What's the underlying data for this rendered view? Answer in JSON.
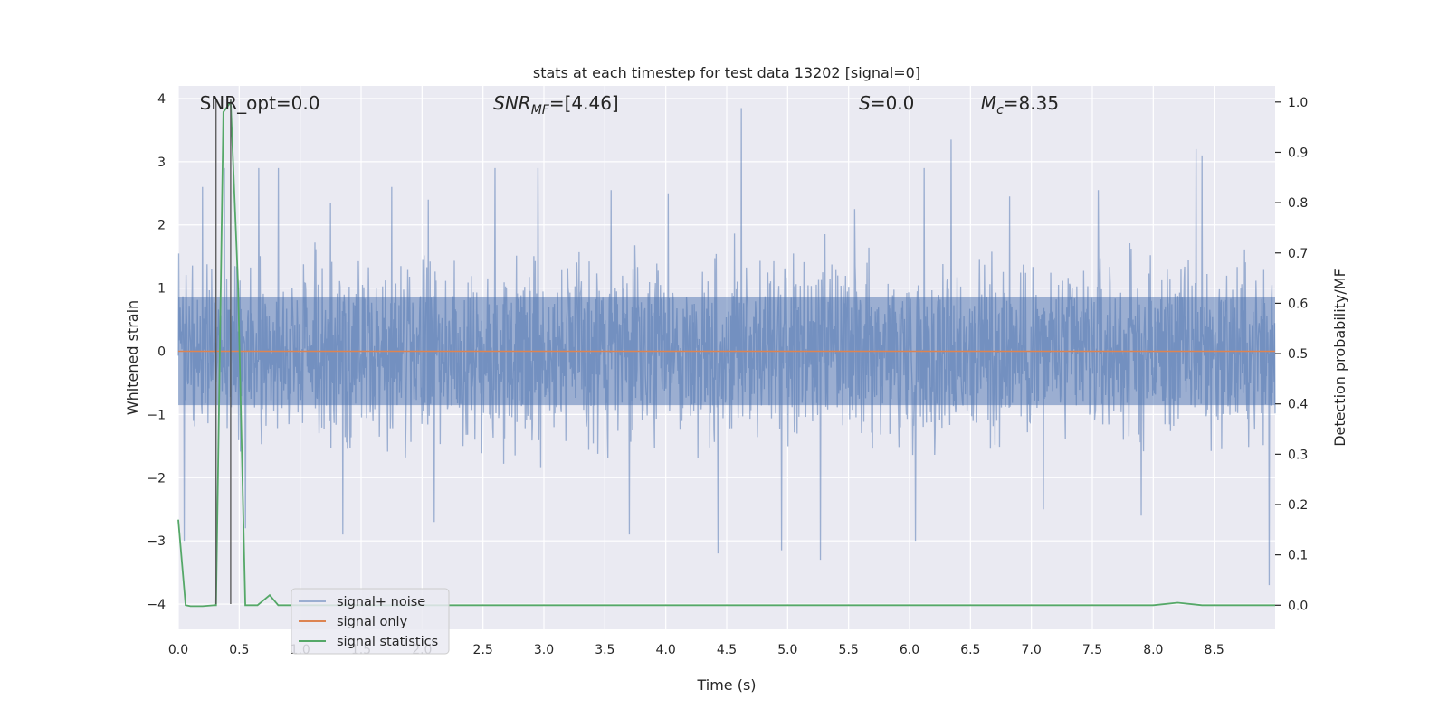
{
  "chart_data": {
    "type": "line",
    "title": "stats at each timestep for test data 13202 [signal=0]",
    "xlabel": "Time (s)",
    "ylabel_left": "Whitened strain",
    "ylabel_right": "Detection probability/MF",
    "xlim": [
      0.0,
      9.0
    ],
    "ylim_left": [
      -4.4,
      4.2
    ],
    "ylim_right": [
      -0.048,
      1.032
    ],
    "x_ticks": [
      0.0,
      0.5,
      1.0,
      1.5,
      2.0,
      2.5,
      3.0,
      3.5,
      4.0,
      4.5,
      5.0,
      5.5,
      6.0,
      6.5,
      7.0,
      7.5,
      8.0,
      8.5
    ],
    "x_tick_labels": [
      "0.0",
      "0.5",
      "1.0",
      "1.5",
      "2.0",
      "2.5",
      "3.0",
      "3.5",
      "4.0",
      "4.5",
      "5.0",
      "5.5",
      "6.0",
      "6.5",
      "7.0",
      "7.5",
      "8.0",
      "8.5"
    ],
    "y_left_ticks": [
      4,
      3,
      2,
      1,
      0,
      -1,
      -2,
      -3,
      -4
    ],
    "y_left_tick_labels": [
      "4",
      "3",
      "2",
      "1",
      "0",
      "−1",
      "−2",
      "−3",
      "−4"
    ],
    "y_right_ticks": [
      1.0,
      0.9,
      0.8,
      0.7,
      0.6,
      0.5,
      0.4,
      0.3,
      0.2,
      0.1,
      0.0
    ],
    "y_right_tick_labels": [
      "1.0",
      "0.9",
      "0.8",
      "0.7",
      "0.6",
      "0.5",
      "0.4",
      "0.3",
      "0.2",
      "0.1",
      "0.0"
    ],
    "grid": true,
    "legend_placement": "lower-left",
    "annotations": [
      {
        "text": "SNR_opt=0.0",
        "x": 0.19
      },
      {
        "text": "SNR",
        "sub": "MF",
        "suffix": "=[4.46]",
        "italic": true,
        "x": 2.6
      },
      {
        "text": "S",
        "suffix": "=0.0",
        "italic": true,
        "x": 5.6
      },
      {
        "text": "M",
        "sub": "c",
        "suffix": "=8.35",
        "italic": true,
        "x": 6.6
      }
    ],
    "vertical_lines_x": [
      0.31,
      0.43
    ],
    "series": [
      {
        "name": "signal+ noise",
        "color": "#4c72b0",
        "alpha": 0.5,
        "axis": "left",
        "envelope_typical": 1.55,
        "spikes_up": [
          {
            "x": 0.2,
            "y": 2.6
          },
          {
            "x": 0.38,
            "y": 2.9
          },
          {
            "x": 0.66,
            "y": 2.9
          },
          {
            "x": 0.82,
            "y": 2.9
          },
          {
            "x": 1.25,
            "y": 2.35
          },
          {
            "x": 1.75,
            "y": 2.6
          },
          {
            "x": 2.05,
            "y": 2.4
          },
          {
            "x": 2.6,
            "y": 2.9
          },
          {
            "x": 2.95,
            "y": 2.9
          },
          {
            "x": 3.55,
            "y": 2.55
          },
          {
            "x": 4.02,
            "y": 2.5
          },
          {
            "x": 4.62,
            "y": 3.85
          },
          {
            "x": 5.55,
            "y": 2.25
          },
          {
            "x": 6.12,
            "y": 2.9
          },
          {
            "x": 6.34,
            "y": 3.35
          },
          {
            "x": 6.82,
            "y": 2.45
          },
          {
            "x": 7.55,
            "y": 2.55
          },
          {
            "x": 8.35,
            "y": 3.2
          },
          {
            "x": 8.4,
            "y": 3.1
          }
        ],
        "spikes_down": [
          {
            "x": 0.05,
            "y": -3.0
          },
          {
            "x": 0.55,
            "y": -2.8
          },
          {
            "x": 1.35,
            "y": -2.9
          },
          {
            "x": 2.1,
            "y": -2.7
          },
          {
            "x": 3.7,
            "y": -2.9
          },
          {
            "x": 4.43,
            "y": -3.2
          },
          {
            "x": 4.95,
            "y": -3.15
          },
          {
            "x": 5.27,
            "y": -3.3
          },
          {
            "x": 6.05,
            "y": -3.0
          },
          {
            "x": 7.1,
            "y": -2.5
          },
          {
            "x": 7.9,
            "y": -2.6
          },
          {
            "x": 8.95,
            "y": -3.7
          }
        ]
      },
      {
        "name": "signal only",
        "color": "#dd8452",
        "axis": "left",
        "x": [
          0.0,
          9.0
        ],
        "y": [
          0.0,
          0.0
        ]
      },
      {
        "name": "signal statistics",
        "color": "#55a868",
        "axis": "right",
        "x": [
          0.0,
          0.06,
          0.1,
          0.2,
          0.3,
          0.31,
          0.37,
          0.43,
          0.49,
          0.55,
          0.65,
          0.75,
          0.82,
          1.0,
          2.0,
          4.0,
          6.0,
          8.0,
          8.2,
          8.4,
          9.0
        ],
        "y": [
          0.17,
          0.0,
          -0.002,
          -0.002,
          0.0,
          0.0,
          0.98,
          1.0,
          0.64,
          0.0,
          0.0,
          0.02,
          0.0,
          0.0,
          0.0,
          0.0,
          0.0,
          0.0,
          0.005,
          0.0,
          0.0
        ]
      }
    ]
  }
}
